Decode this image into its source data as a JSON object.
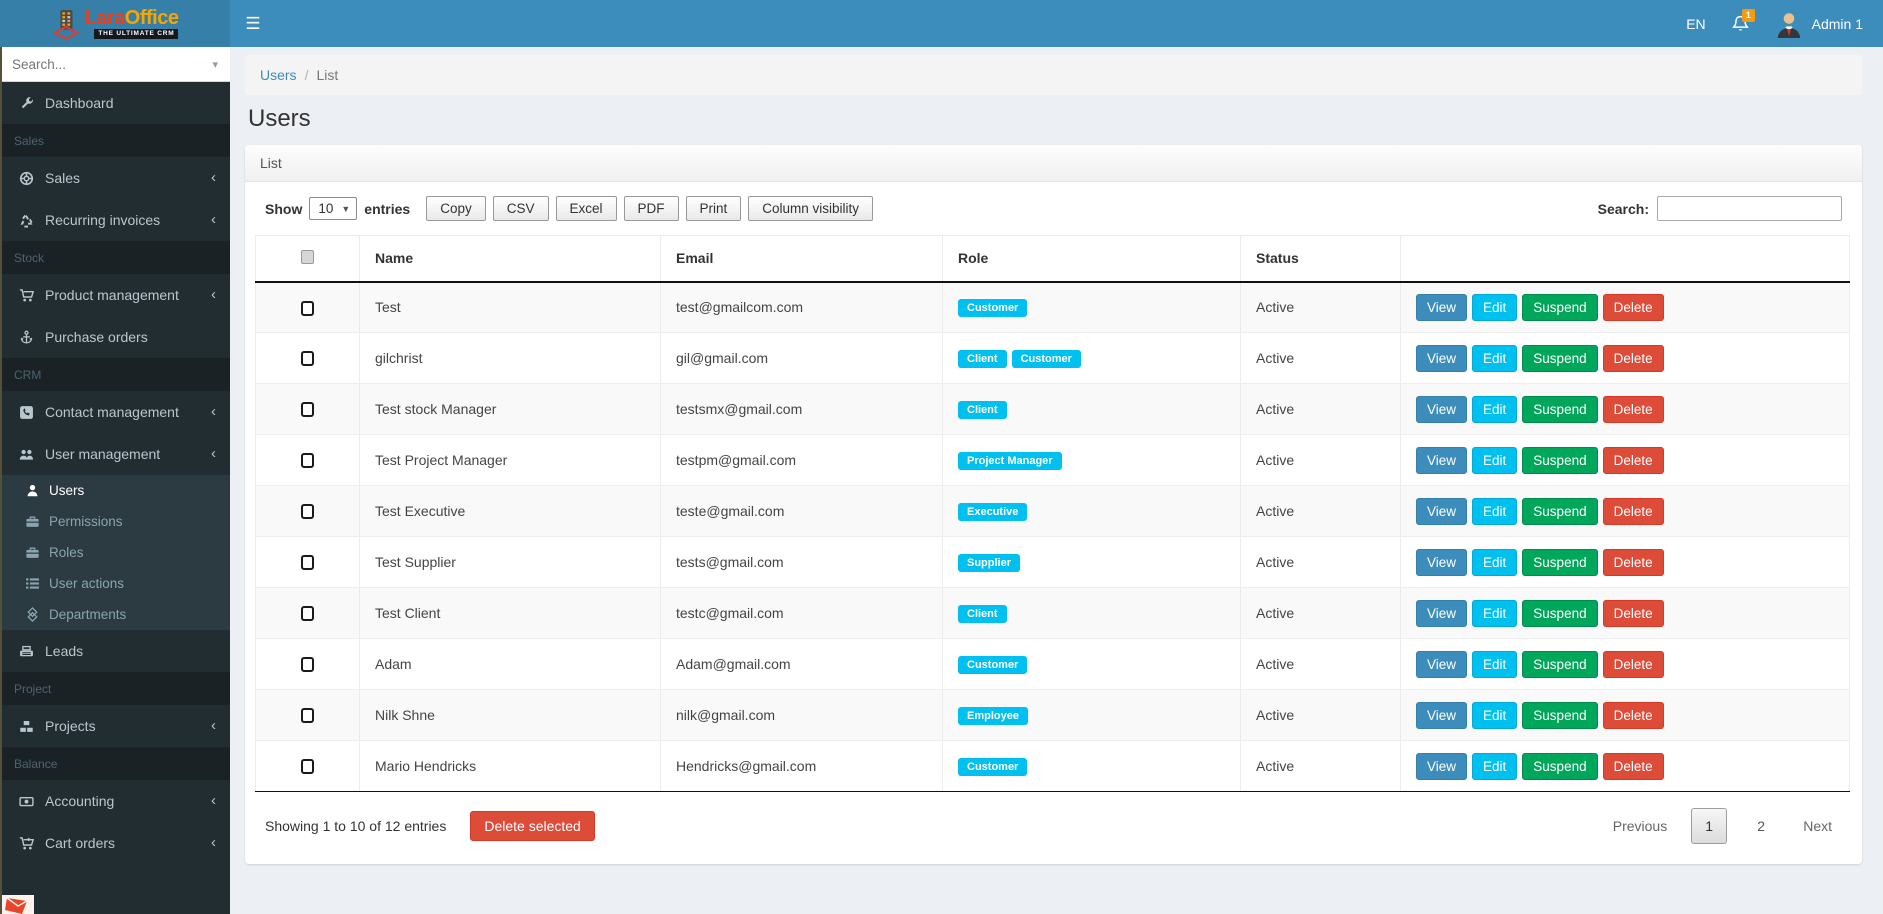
{
  "brand": {
    "name_primary": "Lara",
    "name_secondary": "Office",
    "tagline": "THE ULTIMATE CRM"
  },
  "topbar": {
    "language": "EN",
    "notification_count": "1",
    "username": "Admin 1"
  },
  "sidebar": {
    "search_placeholder": "Search...",
    "items": [
      {
        "type": "item",
        "label": "Dashboard",
        "icon": "wrench-icon"
      },
      {
        "type": "section",
        "label": "Sales"
      },
      {
        "type": "item",
        "label": "Sales",
        "icon": "life-ring-icon",
        "arrow": true
      },
      {
        "type": "item",
        "label": "Recurring invoices",
        "icon": "recycle-icon",
        "arrow": true
      },
      {
        "type": "section",
        "label": "Stock"
      },
      {
        "type": "item",
        "label": "Product management",
        "icon": "cart-icon",
        "arrow": true
      },
      {
        "type": "item",
        "label": "Purchase orders",
        "icon": "anchor-icon"
      },
      {
        "type": "section",
        "label": "CRM"
      },
      {
        "type": "item",
        "label": "Contact management",
        "icon": "phone-square-icon",
        "arrow": true
      },
      {
        "type": "item",
        "label": "User management",
        "icon": "users-icon",
        "arrow": true
      },
      {
        "type": "subitem",
        "label": "Users",
        "icon": "user-icon",
        "active": true
      },
      {
        "type": "subitem",
        "label": "Permissions",
        "icon": "briefcase-icon"
      },
      {
        "type": "subitem",
        "label": "Roles",
        "icon": "briefcase-icon"
      },
      {
        "type": "subitem",
        "label": "User actions",
        "icon": "list-icon"
      },
      {
        "type": "subitem",
        "label": "Departments",
        "icon": "diamond-icon"
      },
      {
        "type": "item",
        "label": "Leads",
        "icon": "fax-icon"
      },
      {
        "type": "section",
        "label": "Project"
      },
      {
        "type": "item",
        "label": "Projects",
        "icon": "cubes-icon",
        "arrow": true
      },
      {
        "type": "section",
        "label": "Balance"
      },
      {
        "type": "item",
        "label": "Accounting",
        "icon": "money-icon",
        "arrow": true
      },
      {
        "type": "item",
        "label": "Cart orders",
        "icon": "cart-plus-icon",
        "arrow": true
      }
    ]
  },
  "breadcrumb": {
    "section": "Users",
    "separator": "/",
    "page": "List"
  },
  "page": {
    "title": "Users",
    "panel_title": "List"
  },
  "controls": {
    "show_label": "Show",
    "page_size": "10",
    "entries_label": "entries",
    "export_buttons": [
      "Copy",
      "CSV",
      "Excel",
      "PDF",
      "Print",
      "Column visibility"
    ],
    "search_label": "Search:",
    "search_value": ""
  },
  "table": {
    "columns": [
      "Name",
      "Email",
      "Role",
      "Status"
    ],
    "action_labels": [
      "View",
      "Edit",
      "Suspend",
      "Delete"
    ],
    "rows": [
      {
        "name": "Test",
        "email": "test@gmailcom.com",
        "roles": [
          "Customer"
        ],
        "status": "Active"
      },
      {
        "name": "gilchrist",
        "email": "gil@gmail.com",
        "roles": [
          "Client",
          "Customer"
        ],
        "status": "Active"
      },
      {
        "name": "Test stock Manager",
        "email": "testsmx@gmail.com",
        "roles": [
          "Client"
        ],
        "status": "Active"
      },
      {
        "name": "Test Project Manager",
        "email": "testpm@gmail.com",
        "roles": [
          "Project Manager"
        ],
        "status": "Active"
      },
      {
        "name": "Test Executive",
        "email": "teste@gmail.com",
        "roles": [
          "Executive"
        ],
        "status": "Active"
      },
      {
        "name": "Test Supplier",
        "email": "tests@gmail.com",
        "roles": [
          "Supplier"
        ],
        "status": "Active"
      },
      {
        "name": "Test Client",
        "email": "testc@gmail.com",
        "roles": [
          "Client"
        ],
        "status": "Active"
      },
      {
        "name": "Adam",
        "email": "Adam@gmail.com",
        "roles": [
          "Customer"
        ],
        "status": "Active"
      },
      {
        "name": "Nilk Shne",
        "email": "nilk@gmail.com",
        "roles": [
          "Employee"
        ],
        "status": "Active"
      },
      {
        "name": "Mario Hendricks",
        "email": "Hendricks@gmail.com",
        "roles": [
          "Customer"
        ],
        "status": "Active"
      }
    ]
  },
  "footer": {
    "showing_text": "Showing 1 to 10 of 12 entries",
    "delete_selected_label": "Delete selected",
    "pagination": {
      "previous": "Previous",
      "pages": [
        "1",
        "2"
      ],
      "active_page": "1",
      "next": "Next"
    }
  },
  "colors": {
    "navbar": "#3c8dbc",
    "logo_bg": "#367fa9",
    "sidebar": "#222d32",
    "sidebar_section": "#1a2226",
    "submenu": "#2c3b41",
    "badge": "#00c0ef",
    "btn_view": "#3c8dbc",
    "btn_edit": "#00c0ef",
    "btn_suspend": "#00a65a",
    "btn_delete": "#dd4b39",
    "notification_badge": "#f39c12",
    "content_bg": "#ecf0f5"
  }
}
